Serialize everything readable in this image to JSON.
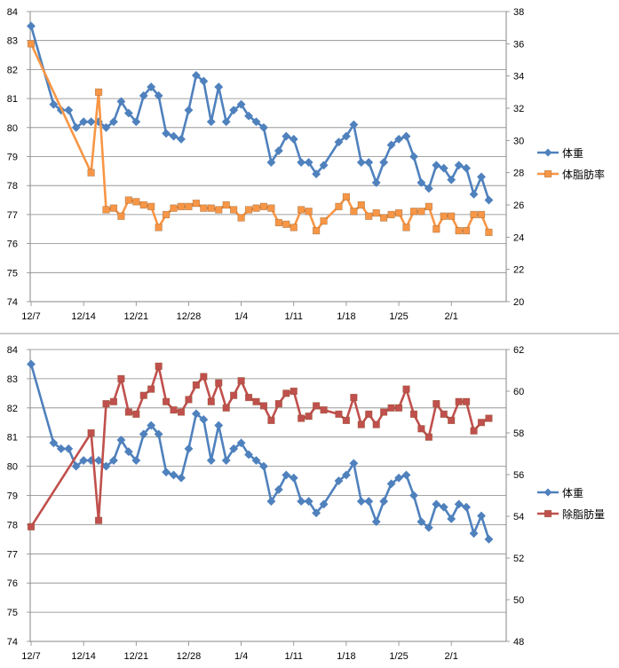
{
  "chart_data": [
    {
      "type": "line",
      "categories": [
        "12/7",
        "12/14",
        "12/21",
        "12/28",
        "1/4",
        "1/11",
        "1/18",
        "1/25",
        "2/1"
      ],
      "y_left": {
        "min": 74,
        "max": 84,
        "step": 1
      },
      "y_right": {
        "min": 20,
        "max": 38,
        "step": 2
      },
      "series": [
        {
          "name": "体重",
          "axis": "left",
          "color": "#4f81bd",
          "marker": "diamond",
          "points": [
            [
              0,
              83.5
            ],
            [
              3,
              80.8
            ],
            [
              4,
              80.6
            ],
            [
              5,
              80.6
            ],
            [
              6,
              80.0
            ],
            [
              7,
              80.2
            ],
            [
              8,
              80.2
            ],
            [
              9,
              80.2
            ],
            [
              10,
              80.0
            ],
            [
              11,
              80.2
            ],
            [
              12,
              80.9
            ],
            [
              13,
              80.5
            ],
            [
              14,
              80.2
            ],
            [
              15,
              81.1
            ],
            [
              16,
              81.4
            ],
            [
              17,
              81.1
            ],
            [
              18,
              79.8
            ],
            [
              19,
              79.7
            ],
            [
              20,
              79.6
            ],
            [
              21,
              80.6
            ],
            [
              22,
              81.8
            ],
            [
              23,
              81.6
            ],
            [
              24,
              80.2
            ],
            [
              25,
              81.4
            ],
            [
              26,
              80.2
            ],
            [
              27,
              80.6
            ],
            [
              28,
              80.8
            ],
            [
              29,
              80.4
            ],
            [
              30,
              80.2
            ],
            [
              31,
              80.0
            ],
            [
              32,
              78.8
            ],
            [
              33,
              79.2
            ],
            [
              34,
              79.7
            ],
            [
              35,
              79.6
            ],
            [
              36,
              78.8
            ],
            [
              37,
              78.8
            ],
            [
              38,
              78.4
            ],
            [
              39,
              78.7
            ],
            [
              41,
              79.5
            ],
            [
              42,
              79.7
            ],
            [
              43,
              80.1
            ],
            [
              44,
              78.8
            ],
            [
              45,
              78.8
            ],
            [
              46,
              78.1
            ],
            [
              47,
              78.8
            ],
            [
              48,
              79.4
            ],
            [
              49,
              79.6
            ],
            [
              50,
              79.7
            ],
            [
              51,
              79.0
            ],
            [
              52,
              78.1
            ],
            [
              53,
              77.9
            ],
            [
              54,
              78.7
            ],
            [
              55,
              78.6
            ],
            [
              56,
              78.2
            ],
            [
              57,
              78.7
            ],
            [
              58,
              78.6
            ],
            [
              59,
              77.7
            ],
            [
              60,
              78.3
            ],
            [
              61,
              77.5
            ]
          ]
        },
        {
          "name": "体脂肪率",
          "axis": "right",
          "color": "#f79646",
          "marker": "square",
          "points": [
            [
              0,
              36.0
            ],
            [
              8,
              28.0
            ],
            [
              9,
              33.0
            ],
            [
              10,
              25.7
            ],
            [
              11,
              25.8
            ],
            [
              12,
              25.3
            ],
            [
              13,
              26.3
            ],
            [
              14,
              26.2
            ],
            [
              15,
              26.0
            ],
            [
              16,
              25.9
            ],
            [
              17,
              24.6
            ],
            [
              18,
              25.4
            ],
            [
              19,
              25.8
            ],
            [
              20,
              25.9
            ],
            [
              21,
              25.9
            ],
            [
              22,
              26.1
            ],
            [
              23,
              25.8
            ],
            [
              24,
              25.8
            ],
            [
              25,
              25.7
            ],
            [
              26,
              26.0
            ],
            [
              27,
              25.7
            ],
            [
              28,
              25.2
            ],
            [
              29,
              25.7
            ],
            [
              30,
              25.8
            ],
            [
              31,
              25.9
            ],
            [
              32,
              25.8
            ],
            [
              33,
              24.9
            ],
            [
              34,
              24.8
            ],
            [
              35,
              24.6
            ],
            [
              36,
              25.7
            ],
            [
              37,
              25.6
            ],
            [
              38,
              24.4
            ],
            [
              39,
              25.0
            ],
            [
              41,
              25.9
            ],
            [
              42,
              26.5
            ],
            [
              43,
              25.6
            ],
            [
              44,
              26.0
            ],
            [
              45,
              25.3
            ],
            [
              46,
              25.5
            ],
            [
              47,
              25.2
            ],
            [
              48,
              25.4
            ],
            [
              49,
              25.5
            ],
            [
              50,
              24.6
            ],
            [
              51,
              25.6
            ],
            [
              52,
              25.6
            ],
            [
              53,
              25.9
            ],
            [
              54,
              24.5
            ],
            [
              55,
              25.3
            ],
            [
              56,
              25.3
            ],
            [
              57,
              24.4
            ],
            [
              58,
              24.4
            ],
            [
              59,
              25.4
            ],
            [
              60,
              25.4
            ],
            [
              61,
              24.3
            ]
          ]
        }
      ]
    },
    {
      "type": "line",
      "categories": [
        "12/7",
        "12/14",
        "12/21",
        "12/28",
        "1/4",
        "1/11",
        "1/18",
        "1/25",
        "2/1"
      ],
      "y_left": {
        "min": 74,
        "max": 84,
        "step": 1
      },
      "y_right": {
        "min": 48,
        "max": 62,
        "step": 2
      },
      "series": [
        {
          "name": "体重",
          "axis": "left",
          "color": "#4f81bd",
          "marker": "diamond",
          "points": [
            [
              0,
              83.5
            ],
            [
              3,
              80.8
            ],
            [
              4,
              80.6
            ],
            [
              5,
              80.6
            ],
            [
              6,
              80.0
            ],
            [
              7,
              80.2
            ],
            [
              8,
              80.2
            ],
            [
              9,
              80.2
            ],
            [
              10,
              80.0
            ],
            [
              11,
              80.2
            ],
            [
              12,
              80.9
            ],
            [
              13,
              80.5
            ],
            [
              14,
              80.2
            ],
            [
              15,
              81.1
            ],
            [
              16,
              81.4
            ],
            [
              17,
              81.1
            ],
            [
              18,
              79.8
            ],
            [
              19,
              79.7
            ],
            [
              20,
              79.6
            ],
            [
              21,
              80.6
            ],
            [
              22,
              81.8
            ],
            [
              23,
              81.6
            ],
            [
              24,
              80.2
            ],
            [
              25,
              81.4
            ],
            [
              26,
              80.2
            ],
            [
              27,
              80.6
            ],
            [
              28,
              80.8
            ],
            [
              29,
              80.4
            ],
            [
              30,
              80.2
            ],
            [
              31,
              80.0
            ],
            [
              32,
              78.8
            ],
            [
              33,
              79.2
            ],
            [
              34,
              79.7
            ],
            [
              35,
              79.6
            ],
            [
              36,
              78.8
            ],
            [
              37,
              78.8
            ],
            [
              38,
              78.4
            ],
            [
              39,
              78.7
            ],
            [
              41,
              79.5
            ],
            [
              42,
              79.7
            ],
            [
              43,
              80.1
            ],
            [
              44,
              78.8
            ],
            [
              45,
              78.8
            ],
            [
              46,
              78.1
            ],
            [
              47,
              78.8
            ],
            [
              48,
              79.4
            ],
            [
              49,
              79.6
            ],
            [
              50,
              79.7
            ],
            [
              51,
              79.0
            ],
            [
              52,
              78.1
            ],
            [
              53,
              77.9
            ],
            [
              54,
              78.7
            ],
            [
              55,
              78.6
            ],
            [
              56,
              78.2
            ],
            [
              57,
              78.7
            ],
            [
              58,
              78.6
            ],
            [
              59,
              77.7
            ],
            [
              60,
              78.3
            ],
            [
              61,
              77.5
            ]
          ]
        },
        {
          "name": "除脂肪量",
          "axis": "right",
          "color": "#c0504d",
          "marker": "square",
          "points": [
            [
              0,
              53.5
            ],
            [
              8,
              58.0
            ],
            [
              9,
              53.8
            ],
            [
              10,
              59.4
            ],
            [
              11,
              59.5
            ],
            [
              12,
              60.6
            ],
            [
              13,
              59.0
            ],
            [
              14,
              58.9
            ],
            [
              15,
              59.8
            ],
            [
              16,
              60.1
            ],
            [
              17,
              61.2
            ],
            [
              18,
              59.5
            ],
            [
              19,
              59.1
            ],
            [
              20,
              59.0
            ],
            [
              21,
              59.6
            ],
            [
              22,
              60.3
            ],
            [
              23,
              60.7
            ],
            [
              24,
              59.5
            ],
            [
              25,
              60.4
            ],
            [
              26,
              59.2
            ],
            [
              27,
              59.8
            ],
            [
              28,
              60.5
            ],
            [
              29,
              59.7
            ],
            [
              30,
              59.5
            ],
            [
              31,
              59.3
            ],
            [
              32,
              58.6
            ],
            [
              33,
              59.4
            ],
            [
              34,
              59.9
            ],
            [
              35,
              60.0
            ],
            [
              36,
              58.7
            ],
            [
              37,
              58.8
            ],
            [
              38,
              59.3
            ],
            [
              39,
              59.1
            ],
            [
              41,
              58.9
            ],
            [
              42,
              58.6
            ],
            [
              43,
              59.7
            ],
            [
              44,
              58.4
            ],
            [
              45,
              58.9
            ],
            [
              46,
              58.4
            ],
            [
              47,
              59.0
            ],
            [
              48,
              59.2
            ],
            [
              49,
              59.2
            ],
            [
              50,
              60.1
            ],
            [
              51,
              58.9
            ],
            [
              52,
              58.2
            ],
            [
              53,
              57.8
            ],
            [
              54,
              59.4
            ],
            [
              55,
              58.9
            ],
            [
              56,
              58.6
            ],
            [
              57,
              59.5
            ],
            [
              58,
              59.5
            ],
            [
              59,
              58.1
            ],
            [
              60,
              58.5
            ],
            [
              61,
              58.7
            ]
          ]
        }
      ]
    }
  ]
}
